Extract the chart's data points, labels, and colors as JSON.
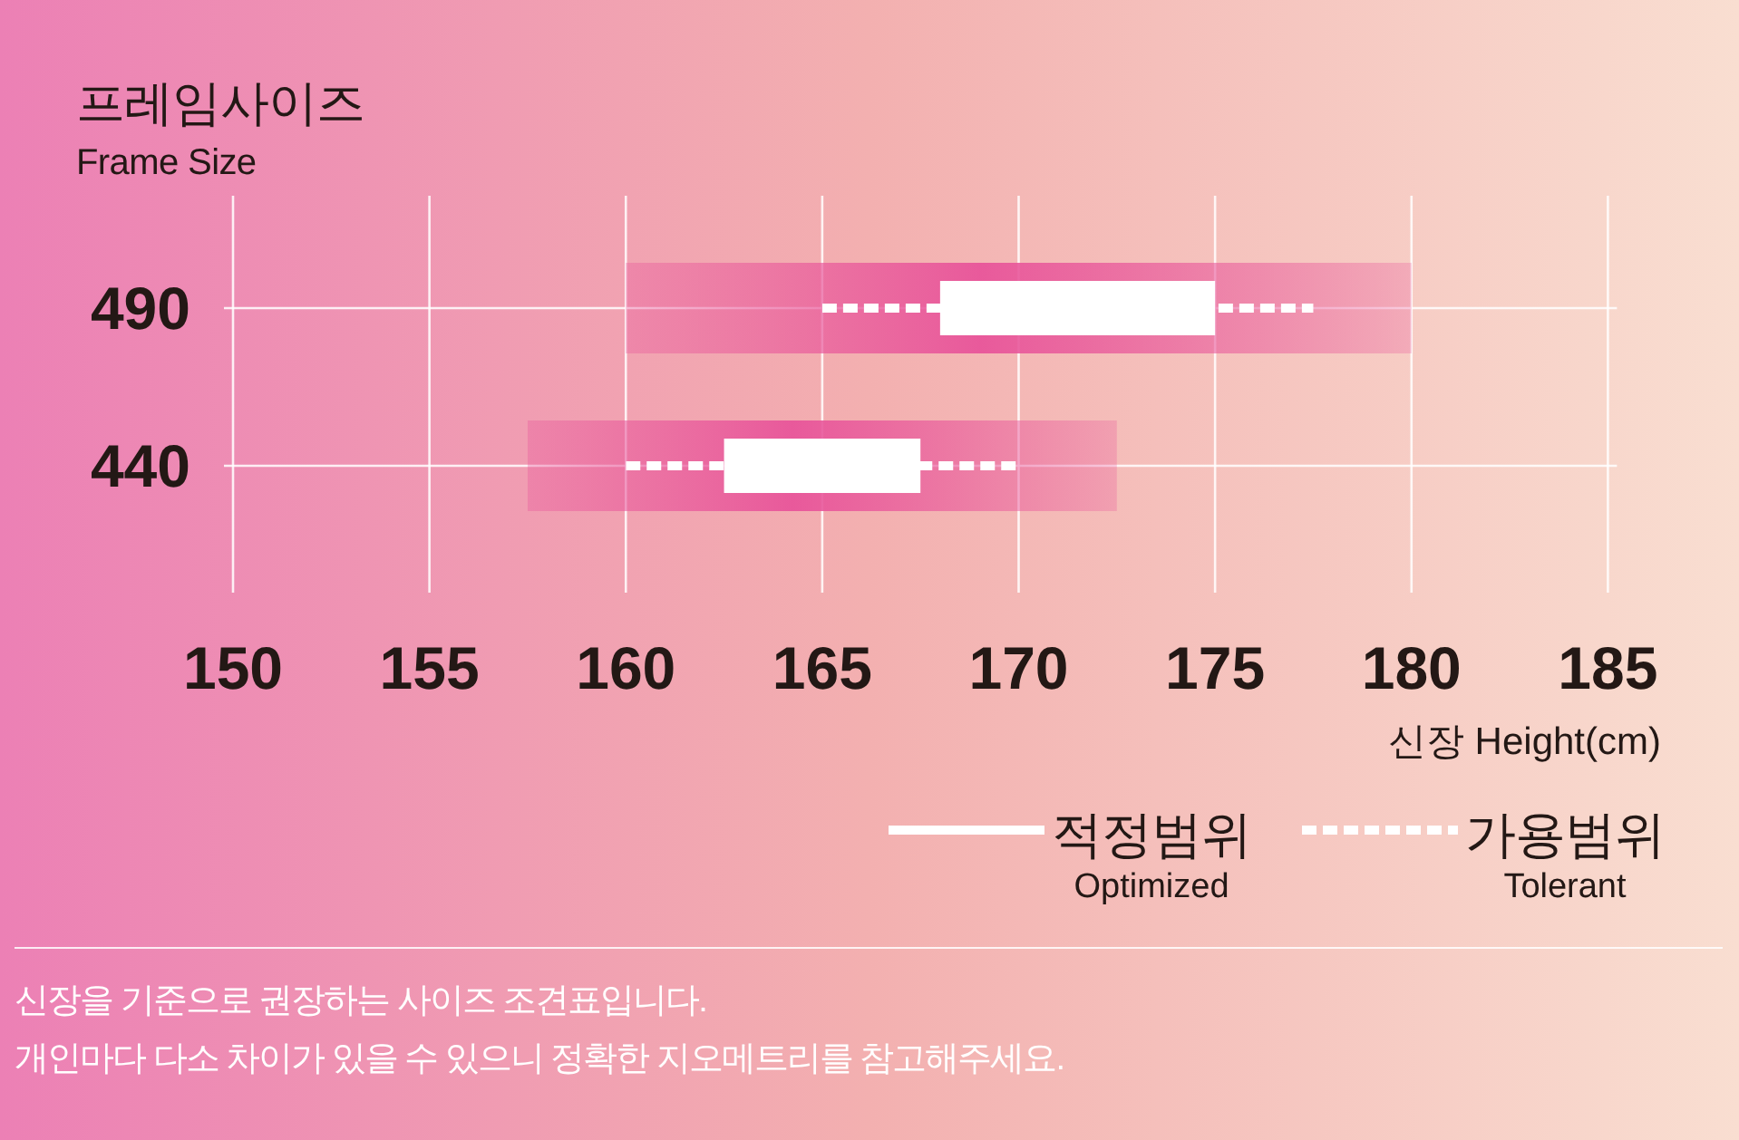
{
  "chart_data": {
    "type": "bar",
    "orientation": "horizontal",
    "ylabel": "프레임사이즈\nFrame Size",
    "xlabel": "신장 Height(cm)",
    "categories": [
      "490",
      "440"
    ],
    "xlim": [
      150,
      185
    ],
    "xticks": [
      150,
      155,
      160,
      165,
      170,
      175,
      180,
      185
    ],
    "grid": true,
    "legend": "bottom right",
    "series": [
      {
        "color": "#e8559a",
        "base": [
          160,
          157.5
        ],
        "values": [
          20,
          15
        ]
      },
      {
        "name": "적정범위\nOptimized",
        "color": "#ffffff",
        "line_style": "solid",
        "base": [
          168,
          162.5
        ],
        "values": [
          7,
          5
        ]
      },
      {
        "name": "가용범위\nTolerant",
        "color": "#ffffff",
        "line_style": "dashed",
        "base": [
          165,
          160
        ],
        "values": [
          12.5,
          10
        ]
      }
    ],
    "annotations": [
      "신장을 기준으로 권장하는 사이즈 조견표입니다.",
      "개인마다 다소 차이가 있을 수 있으니 정확한 지오메트리를 참고해주세요."
    ]
  }
}
